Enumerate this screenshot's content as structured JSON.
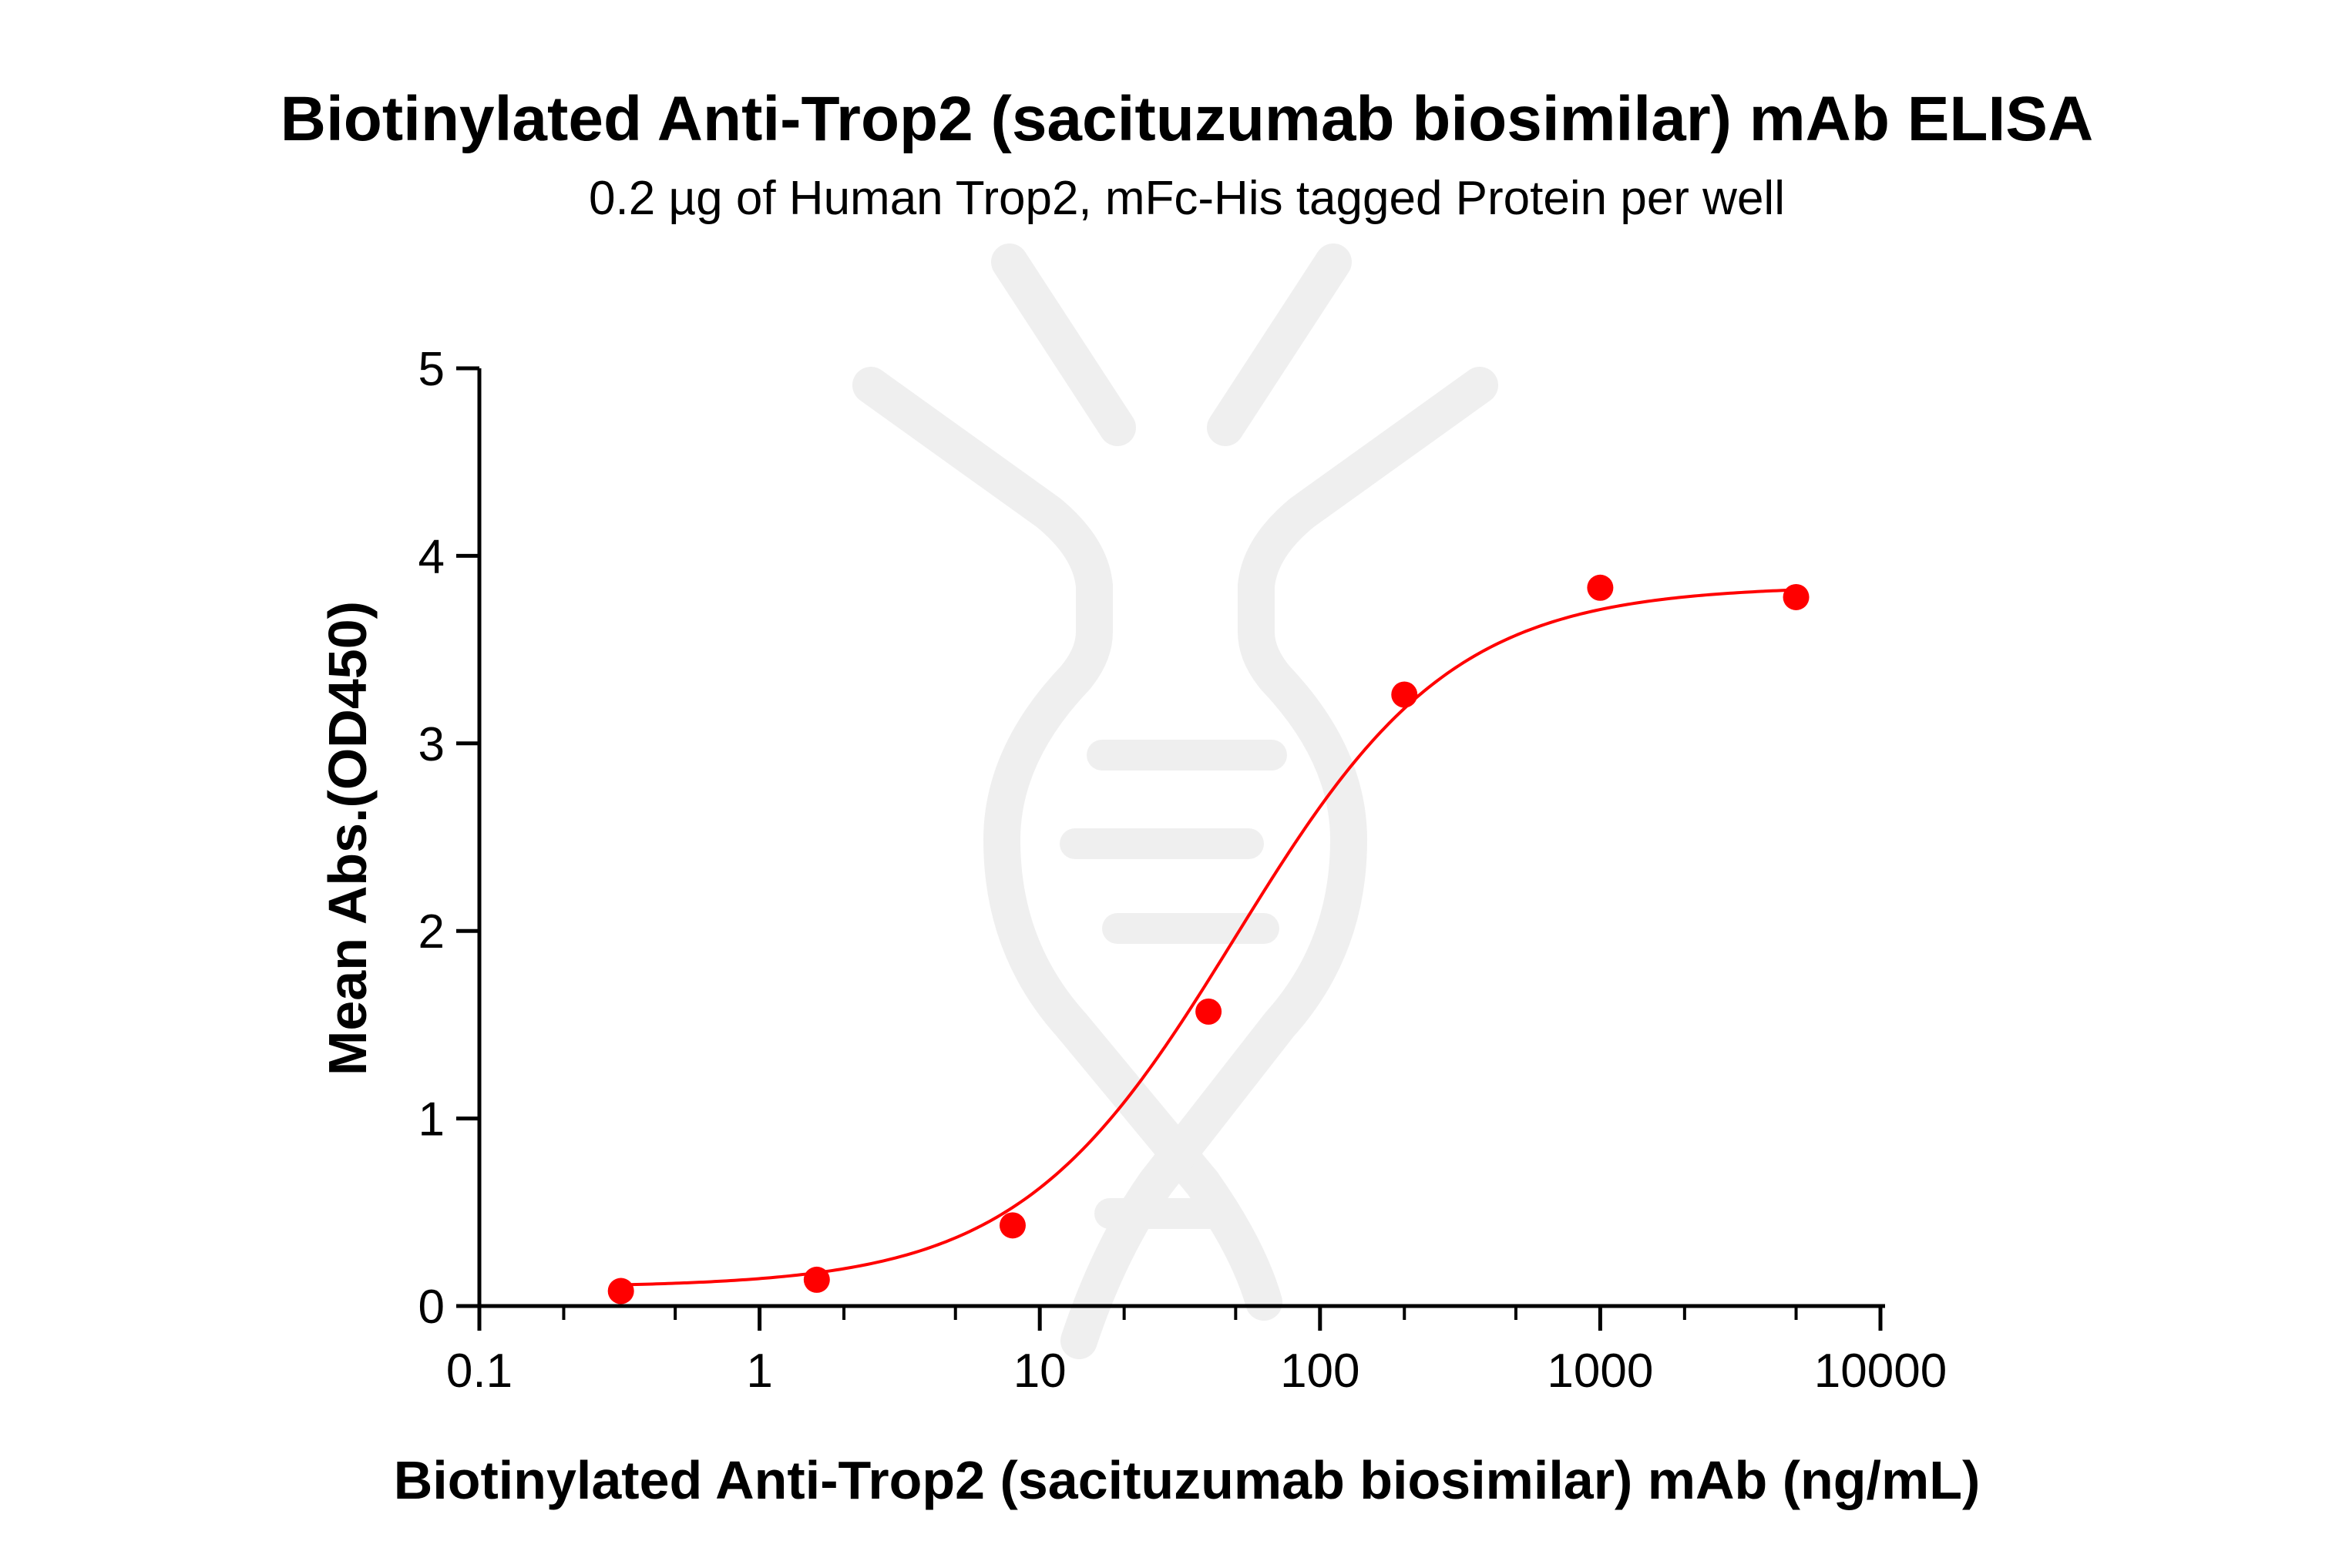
{
  "chart_data": {
    "type": "scatter",
    "title": "Biotinylated Anti-Trop2 (sacituzumab biosimilar) mAb ELISA",
    "subtitle": "0.2 µg of Human Trop2, mFc-His tagged Protein per well",
    "xlabel": "Biotinylated Anti-Trop2 (sacituzumab biosimilar) mAb (ng/mL)",
    "ylabel": "Mean Abs.(OD450)",
    "xscale": "log",
    "xlim": [
      0.1,
      10000
    ],
    "ylim": [
      0,
      5
    ],
    "xticks": [
      "0.1",
      "1",
      "10",
      "100",
      "1000",
      "10000"
    ],
    "yticks": [
      "0",
      "1",
      "2",
      "3",
      "4",
      "5"
    ],
    "grid": false,
    "series": [
      {
        "color": "#ff0000",
        "marker": "circle",
        "fit": "4-parameter logistic",
        "x": [
          0.32,
          1.6,
          8,
          40,
          200,
          1000,
          5000
        ],
        "y": [
          0.08,
          0.14,
          0.43,
          1.57,
          3.26,
          3.83,
          3.78
        ]
      }
    ]
  }
}
